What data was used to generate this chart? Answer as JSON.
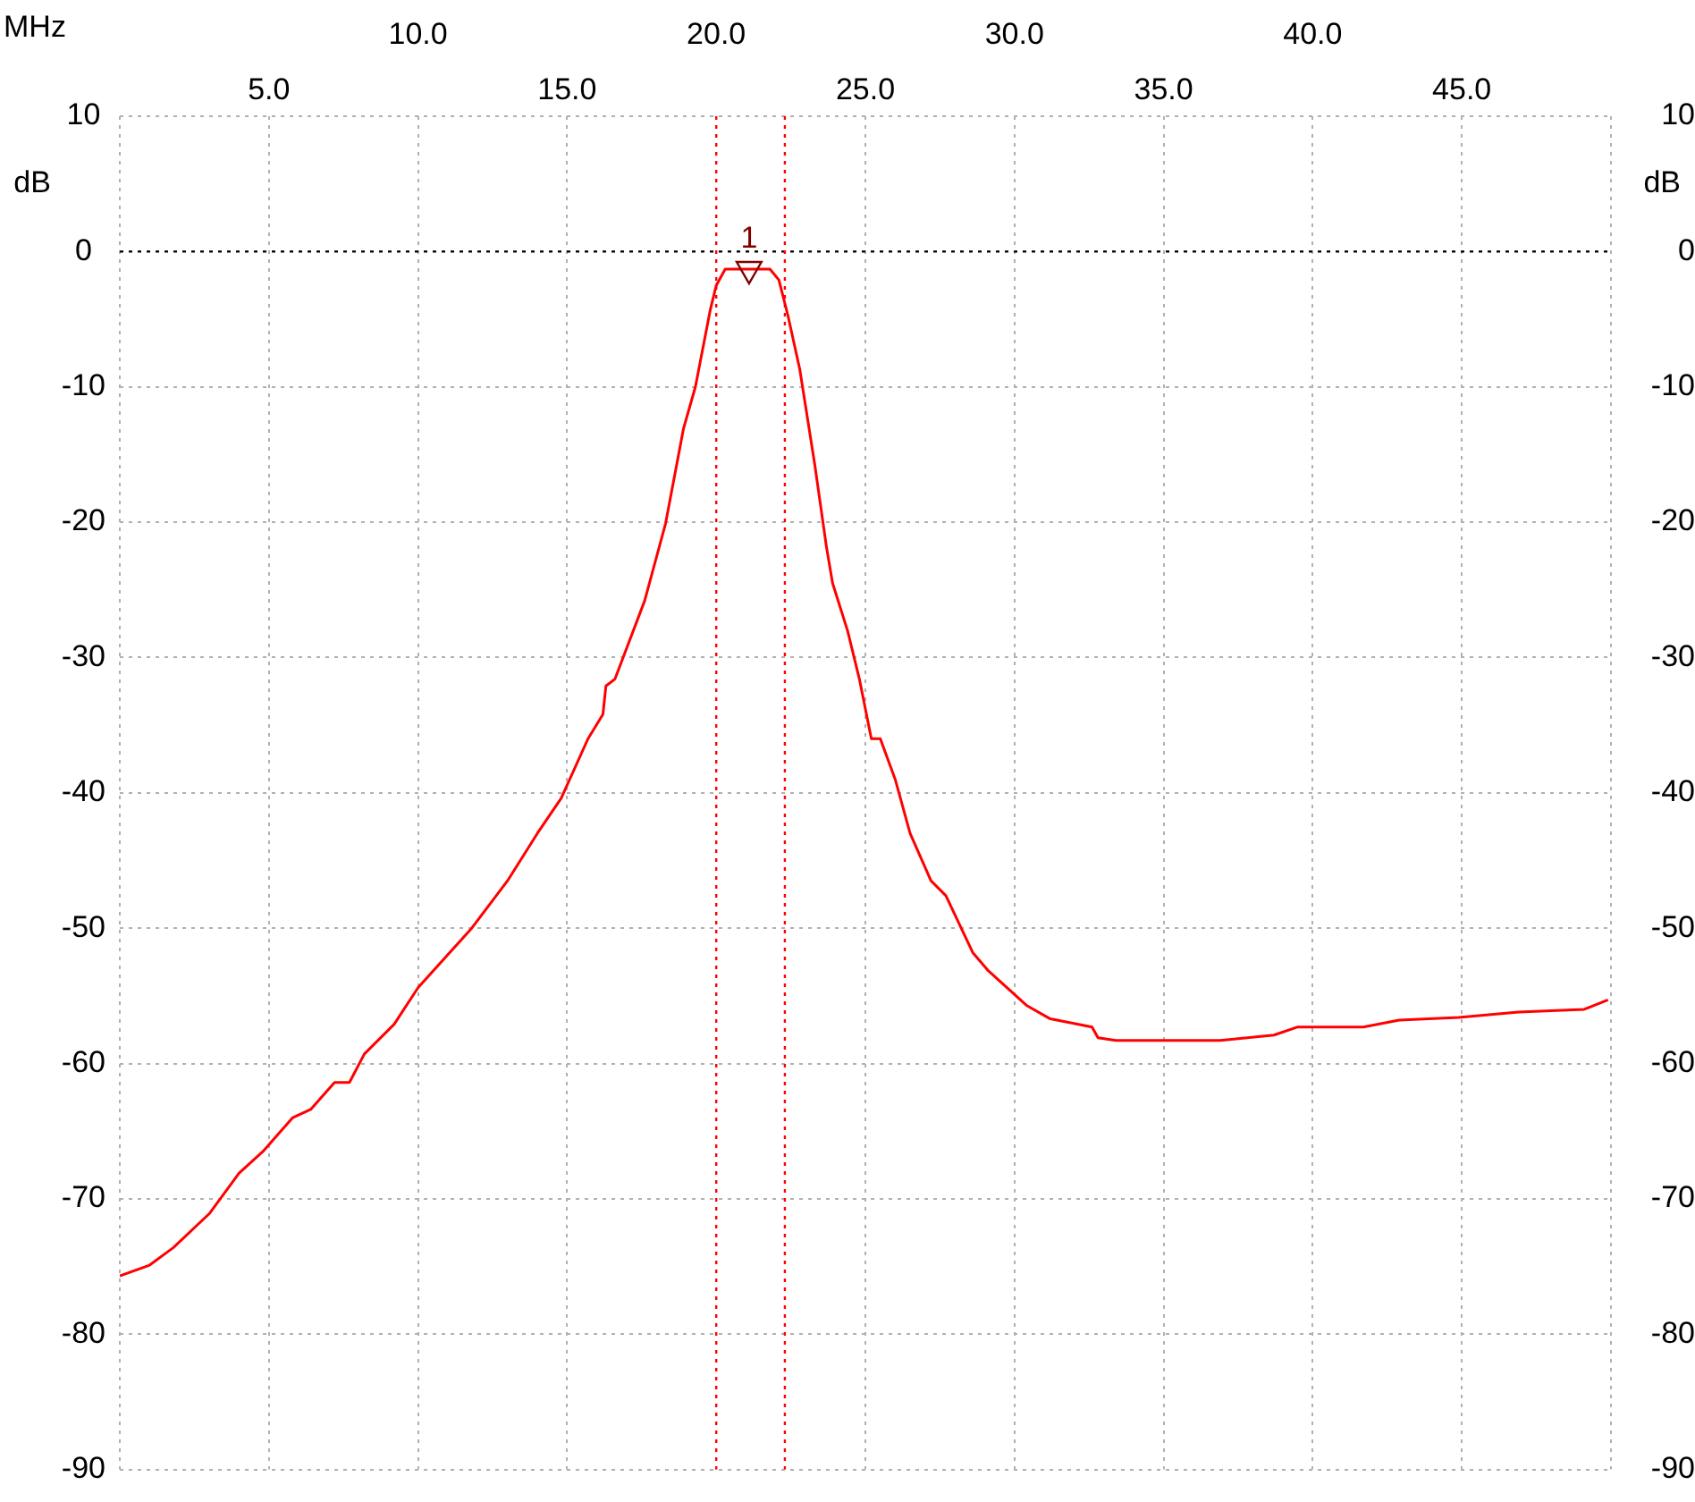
{
  "chart_data": {
    "type": "line",
    "xlabel": "MHz",
    "ylabel": "dB",
    "y2label": "dB",
    "xlim": [
      0,
      50
    ],
    "xticks": [
      {
        "value": 5,
        "label": "5.0"
      },
      {
        "value": 15,
        "label": "15.0"
      },
      {
        "value": 25,
        "label": "25.0"
      },
      {
        "value": 35,
        "label": "35.0"
      },
      {
        "value": 45,
        "label": "45.0"
      }
    ],
    "x2lim": [
      0,
      50
    ],
    "x2ticks": [
      {
        "value": 0,
        "label": null
      },
      {
        "value": 10,
        "label": "10.0"
      },
      {
        "value": 20,
        "label": "20.0"
      },
      {
        "value": 30,
        "label": "30.0"
      },
      {
        "value": 40,
        "label": "40.0"
      },
      {
        "value": 50,
        "label": null
      }
    ],
    "ylim": [
      -90,
      10
    ],
    "yticks": [
      -90,
      -80,
      -70,
      -60,
      -50,
      -40,
      -30,
      -20,
      -10,
      0,
      10
    ],
    "y2lim": [
      -90,
      10
    ],
    "y2ticks": [
      -90,
      -80,
      -70,
      -60,
      -50,
      -40,
      -30,
      -20,
      -10,
      0,
      10
    ],
    "grid": true,
    "legend": false,
    "marker": "none",
    "line_style": "solid",
    "ref_lines": [
      {
        "axis": "y",
        "value": 0,
        "color": "#000000",
        "line_style": "dotted"
      },
      {
        "axis": "x",
        "value": 20.0,
        "color": "#ff0000",
        "line_style": "dotted"
      },
      {
        "axis": "x",
        "value": 22.3,
        "color": "#ff0000",
        "line_style": "dotted"
      }
    ],
    "series": [
      {
        "type": "scatter",
        "name": "1",
        "color": "#800000",
        "marker": "triangle",
        "x": [
          21.1
        ],
        "values": [
          -1.3
        ]
      },
      {
        "color": "#ff0000",
        "x": [
          0,
          1.0,
          1.8,
          3.0,
          4.0,
          4.8,
          5.8,
          6.4,
          7.2,
          7.7,
          8.2,
          9.2,
          10.0,
          11.8,
          13.0,
          14.0,
          14.8,
          15.7,
          16.2,
          16.3,
          16.6,
          17.6,
          18.3,
          18.9,
          19.3,
          19.8,
          20.0,
          20.3,
          21.8,
          22.1,
          22.4,
          22.8,
          23.3,
          23.7,
          23.9,
          24.4,
          24.8,
          25.2,
          25.5,
          26.0,
          26.5,
          27.2,
          27.7,
          28.6,
          29.1,
          30.4,
          31.2,
          32.6,
          32.8,
          33.4,
          36.9,
          38.7,
          39.5,
          41.7,
          42.9,
          44.9,
          46.9,
          49.1,
          49.9
        ],
        "values": [
          -75.7,
          -74.9,
          -73.6,
          -71.1,
          -68.1,
          -66.5,
          -64.0,
          -63.4,
          -61.4,
          -61.4,
          -59.3,
          -57.1,
          -54.4,
          -50.0,
          -46.5,
          -43.0,
          -40.4,
          -36.0,
          -34.2,
          -32.1,
          -31.6,
          -25.8,
          -20.1,
          -13.1,
          -10.0,
          -4.3,
          -2.5,
          -1.3,
          -1.3,
          -2.1,
          -4.7,
          -8.7,
          -15.7,
          -21.9,
          -24.5,
          -28.0,
          -31.6,
          -36.0,
          -36.0,
          -39.0,
          -43.0,
          -46.5,
          -47.6,
          -51.8,
          -53.1,
          -55.7,
          -56.7,
          -57.3,
          -58.1,
          -58.3,
          -58.3,
          -57.9,
          -57.3,
          -57.3,
          -56.8,
          -56.6,
          -56.2,
          -56.0,
          -55.3
        ]
      }
    ]
  }
}
